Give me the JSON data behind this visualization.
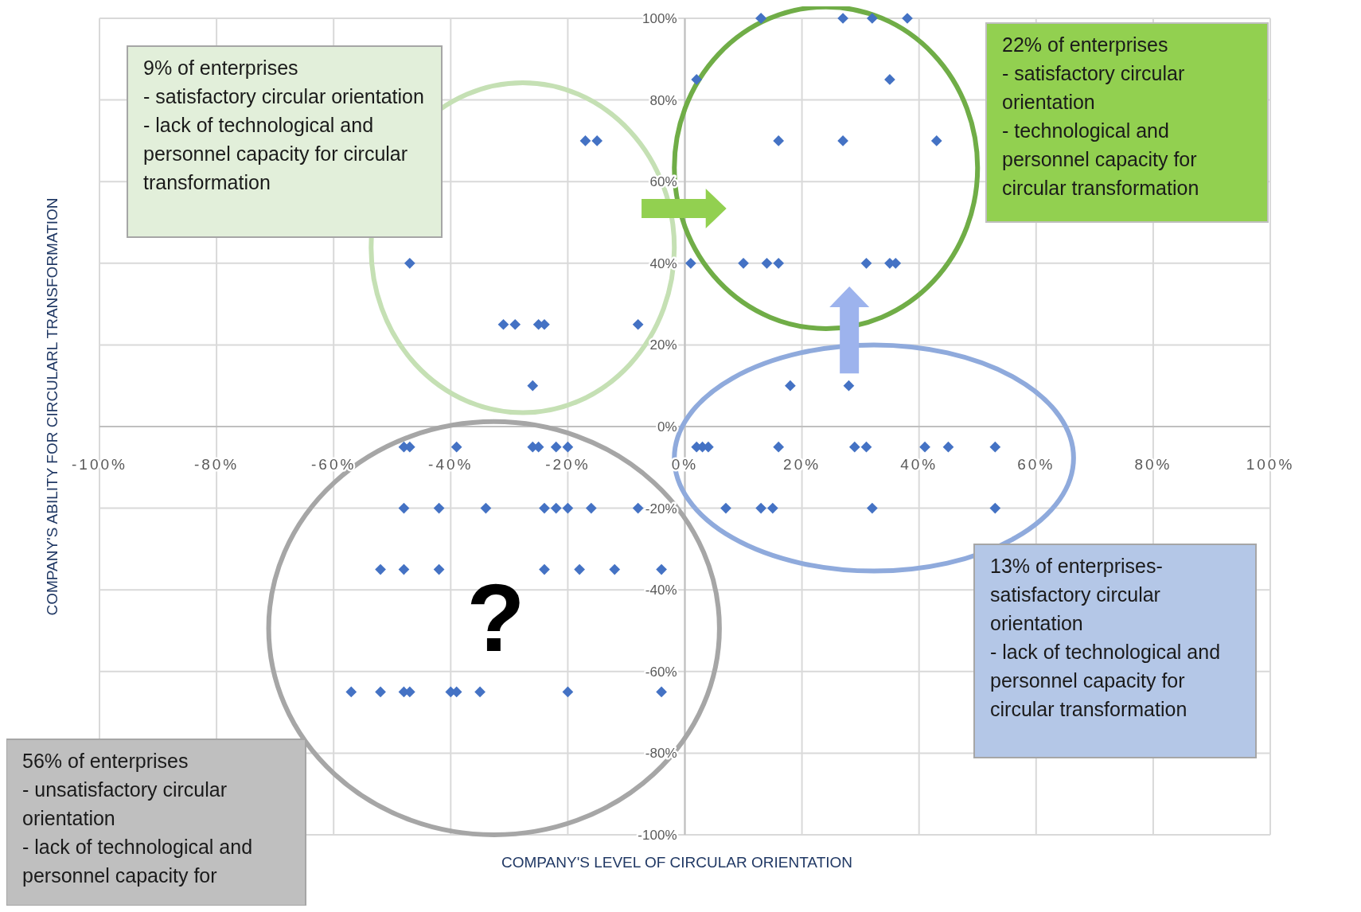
{
  "chart_data": {
    "type": "scatter",
    "xlabel": "COMPANY'S LEVEL OF CIRCULAR ORIENTATION",
    "ylabel": "COMPANY'S ABILITY FOR CIRCULARL TRANSFORMATION",
    "xlim": [
      -100,
      100
    ],
    "ylim": [
      -100,
      100
    ],
    "xticks": [
      {
        "value": -100,
        "label": "-100%"
      },
      {
        "value": -80,
        "label": "-80%"
      },
      {
        "value": -60,
        "label": "-60%"
      },
      {
        "value": -40,
        "label": "-40%"
      },
      {
        "value": -20,
        "label": "-20%"
      },
      {
        "value": 0,
        "label": "0%"
      },
      {
        "value": 20,
        "label": "20%"
      },
      {
        "value": 40,
        "label": "40%"
      },
      {
        "value": 60,
        "label": "60%"
      },
      {
        "value": 80,
        "label": "80%"
      },
      {
        "value": 100,
        "label": "100%"
      }
    ],
    "yticks": [
      {
        "value": -100,
        "label": "-100%"
      },
      {
        "value": -80,
        "label": "-80%"
      },
      {
        "value": -60,
        "label": "-60%"
      },
      {
        "value": -40,
        "label": "-40%"
      },
      {
        "value": -20,
        "label": "-20%"
      },
      {
        "value": 0,
        "label": "0%"
      },
      {
        "value": 20,
        "label": "20%"
      },
      {
        "value": 40,
        "label": "40%"
      },
      {
        "value": 60,
        "label": "60%"
      },
      {
        "value": 80,
        "label": "80%"
      },
      {
        "value": 100,
        "label": "100%"
      }
    ],
    "grid": true,
    "marker": "diamond",
    "series": [
      {
        "color": "#4472c4",
        "x": [
          13,
          13,
          27,
          32,
          38,
          2,
          35,
          -17,
          -15,
          16,
          27,
          43,
          -47,
          1,
          10,
          14,
          16,
          31,
          35,
          36,
          -31,
          -29,
          -25,
          -24,
          -8,
          -26,
          18,
          28,
          -48,
          -47,
          -39,
          -26,
          -25,
          -22,
          -20,
          2,
          3,
          4,
          16,
          29,
          31,
          41,
          45,
          53,
          -48,
          -42,
          -34,
          -24,
          -22,
          -20,
          -16,
          -8,
          7,
          13,
          15,
          32,
          53,
          -52,
          -48,
          -42,
          -24,
          -18,
          -12,
          -4,
          -57,
          -52,
          -48,
          -47,
          -40,
          -39,
          -35,
          -20,
          -4
        ],
        "values": [
          100,
          100,
          100,
          100,
          100,
          85,
          85,
          70,
          70,
          70,
          70,
          70,
          40,
          40,
          40,
          40,
          40,
          40,
          40,
          40,
          25,
          25,
          25,
          25,
          25,
          10,
          10,
          10,
          -5,
          -5,
          -5,
          -5,
          -5,
          -5,
          -5,
          -5,
          -5,
          -5,
          -5,
          -5,
          -5,
          -5,
          -5,
          -5,
          -20,
          -20,
          -20,
          -20,
          -20,
          -20,
          -20,
          -20,
          -20,
          -20,
          -20,
          -20,
          -20,
          -35,
          -35,
          -35,
          -35,
          -35,
          -35,
          -35,
          -65,
          -65,
          -65,
          -65,
          -65,
          -65,
          -65,
          -65,
          -65
        ]
      }
    ],
    "annotations": [
      "9% of enterprises\n- satisfactory circular orientation\n- lack of technological and personnel capacity for circular transformation",
      "22% of enterprises\n- satisfactory circular orientation\n- technological and personnel capacity for circular transformation",
      "13% of enterprises- satisfactory circular orientation\n- lack of technological and personnel capacity for circular transformation",
      "56% of enterprises\n- unsatisfactory circular orientation\n- lack of technological and personnel capacity for",
      "?"
    ]
  }
}
